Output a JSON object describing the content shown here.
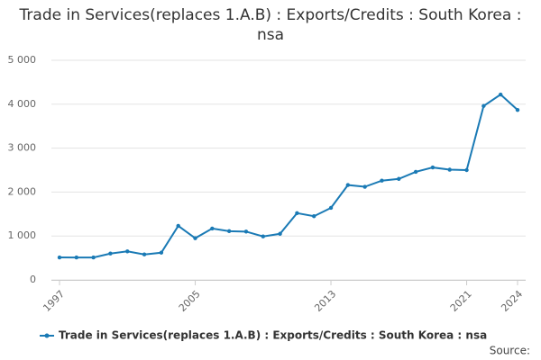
{
  "chart_data": {
    "type": "line",
    "title": "Trade in Services(replaces 1.A.B) : Exports/Credits : South Korea : nsa",
    "x": [
      1997,
      1998,
      1999,
      2000,
      2001,
      2002,
      2003,
      2004,
      2005,
      2006,
      2007,
      2008,
      2009,
      2010,
      2011,
      2012,
      2013,
      2014,
      2015,
      2016,
      2017,
      2018,
      2019,
      2020,
      2021,
      2022,
      2023,
      2024
    ],
    "series": [
      {
        "name": "Trade in Services(replaces 1.A.B) : Exports/Credits : South Korea : nsa",
        "color": "#1a7ab5",
        "values": [
          512,
          510,
          510,
          600,
          650,
          580,
          620,
          1230,
          950,
          1170,
          1110,
          1100,
          990,
          1050,
          1520,
          1450,
          1640,
          2160,
          2120,
          2260,
          2300,
          2460,
          2560,
          2510,
          2500,
          3960,
          4220,
          3870
        ]
      }
    ],
    "xlim": [
      1997,
      2024
    ],
    "xticks": [
      1997,
      2005,
      2013,
      2021,
      2024
    ],
    "ylim": [
      0,
      5000
    ],
    "yticks": [
      0,
      {
        "value": 1000,
        "label": "1 000"
      },
      {
        "value": 2000,
        "label": "2 000"
      },
      {
        "value": 3000,
        "label": "3 000"
      },
      {
        "value": 4000,
        "label": "4 000"
      },
      {
        "value": 5000,
        "label": "5 000"
      }
    ],
    "grid": true,
    "legend": "bottom",
    "source": "Source:"
  }
}
